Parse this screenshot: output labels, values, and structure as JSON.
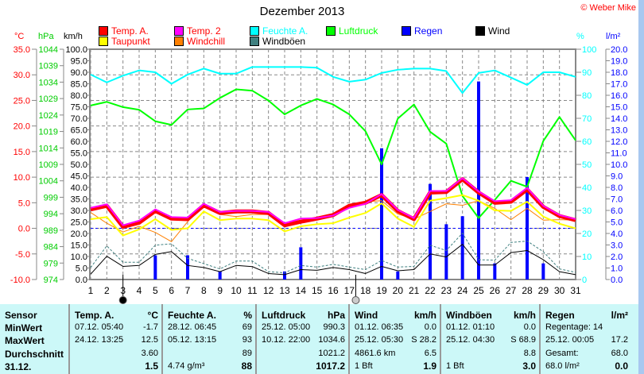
{
  "title": "Dezember 2013",
  "copyright": "© Weber Mike",
  "legend": [
    {
      "label": "Temp. A.",
      "color": "#ff0000",
      "text_color": "#ff0000"
    },
    {
      "label": "Temp. 2",
      "color": "#ff00ff",
      "text_color": "#ff0000"
    },
    {
      "label": "Feuchte A.",
      "color": "#00ffff",
      "text_color": "#00ffff"
    },
    {
      "label": "Luftdruck",
      "color": "#00ff00",
      "text_color": "#00ff00"
    },
    {
      "label": "Regen",
      "color": "#0000ff",
      "text_color": "#0000ff"
    },
    {
      "label": "Wind",
      "color": "#000000",
      "text_color": "#000000"
    },
    {
      "label": "Taupunkt",
      "color": "#ffff00",
      "text_color": "#ff0000"
    },
    {
      "label": "Windchill",
      "color": "#ff8000",
      "text_color": "#ff0000"
    },
    {
      "label": "Windböen",
      "color": "#408080",
      "text_color": "#000000"
    }
  ],
  "chart_data": {
    "type": "line",
    "title": "Dezember 2013",
    "x": [
      1,
      2,
      3,
      4,
      5,
      6,
      7,
      8,
      9,
      10,
      11,
      12,
      13,
      14,
      15,
      16,
      17,
      18,
      19,
      20,
      21,
      22,
      23,
      24,
      25,
      26,
      27,
      28,
      29,
      30,
      31
    ],
    "axes": {
      "temp": {
        "unit": "°C",
        "min": -10,
        "max": 35,
        "step": 5,
        "decimals": 1,
        "color": "#ff0000"
      },
      "pressure": {
        "unit": "hPa",
        "min": 974,
        "max": 1044,
        "step": 5,
        "decimals": 0,
        "color": "#00cc00"
      },
      "wind": {
        "unit": "km/h",
        "min": 0,
        "max": 100,
        "step": 5,
        "decimals": 1,
        "color": "#000000"
      },
      "humidity": {
        "unit": "%",
        "min": 0,
        "max": 100,
        "step": 10,
        "decimals": 0,
        "color": "#00ffff"
      },
      "rain": {
        "unit": "l/m²",
        "min": 0,
        "max": 20,
        "step": 1,
        "decimals": 1,
        "color": "#0000ff"
      }
    },
    "grid": true,
    "series": [
      {
        "name": "Feuchte A.",
        "axis": "humidity",
        "color": "#00ffff",
        "width": 2,
        "values": [
          89,
          85.6,
          88.5,
          90.8,
          90,
          85,
          89,
          91.6,
          89.4,
          89.4,
          92.3,
          92.3,
          92.3,
          92.3,
          92,
          88,
          85.9,
          86.8,
          89.7,
          91.1,
          91.6,
          91.6,
          90.5,
          81,
          89.7,
          90.8,
          87.7,
          84.5,
          90,
          90,
          88
        ]
      },
      {
        "name": "Luftdruck",
        "axis": "pressure",
        "color": "#00ff00",
        "width": 2,
        "values": [
          1026.9,
          1028,
          1026.4,
          1025.6,
          1022.1,
          1021,
          1025.7,
          1026,
          1029.2,
          1031.8,
          1031.4,
          1028.4,
          1024.2,
          1026.9,
          1028.9,
          1027.2,
          1024.2,
          1019.1,
          1009,
          1022.9,
          1027.2,
          1018.9,
          1015.3,
          999.4,
          992.7,
          998.2,
          1004,
          1002.2,
          1016.1,
          1023.4,
          1016.3
        ]
      },
      {
        "name": "Windchill",
        "axis": "temp",
        "color": "#ff8000",
        "width": 1,
        "values": [
          3.1,
          1.0,
          -0.7,
          0.4,
          -0.8,
          -2.6,
          1.3,
          4.4,
          2.7,
          2.3,
          2.7,
          2.7,
          0.3,
          1.3,
          1.8,
          2.6,
          4.4,
          5.2,
          5.4,
          2.8,
          1.8,
          3.3,
          4.8,
          4.5,
          5.4,
          3.9,
          1.7,
          3.9,
          1.6,
          1.7,
          1.6
        ]
      },
      {
        "name": "Taupunkt",
        "axis": "temp",
        "color": "#ffff00",
        "width": 2,
        "values": [
          1.8,
          2.2,
          -1.4,
          -0.2,
          1.8,
          -0.3,
          0,
          3.3,
          1.6,
          1.9,
          1.9,
          1.6,
          -0.6,
          0.4,
          0.8,
          1.0,
          2.1,
          3.0,
          4.9,
          1.9,
          0.3,
          5.4,
          5.9,
          6.5,
          5.4,
          3.5,
          3.4,
          5.2,
          2.3,
          0.9,
          0
        ]
      },
      {
        "name": "Temp. A.",
        "axis": "temp",
        "color": "#ff0000",
        "width": 5,
        "values": [
          3.7,
          4.4,
          0.3,
          1.1,
          3.4,
          1.9,
          1.8,
          4.5,
          3.0,
          3.3,
          3.3,
          3.0,
          0.6,
          1.3,
          1.9,
          2.6,
          4.4,
          5.0,
          6.5,
          3.4,
          1.8,
          7.0,
          7.1,
          9.6,
          7.0,
          5.0,
          5.2,
          7.6,
          4.2,
          2.4,
          1.6
        ]
      },
      {
        "name": "Temp. 2",
        "axis": "temp",
        "color": "#ff00ff",
        "width": 2,
        "values": [
          4.0,
          4.7,
          0.6,
          1.5,
          3.7,
          2.2,
          2.1,
          4.8,
          3.2,
          3.4,
          3.4,
          3.2,
          1.0,
          1.9,
          2.0,
          2.5,
          4.0,
          4.8,
          6.7,
          3.6,
          2.0,
          7.3,
          7.3,
          9.8,
          7.2,
          5.3,
          5.5,
          7.9,
          4.4,
          2.6,
          1.8
        ]
      },
      {
        "name": "Windböen",
        "axis": "wind",
        "color": "#408080",
        "width": 1,
        "dashed": true,
        "values": [
          5.2,
          14.6,
          7.5,
          7.5,
          14.9,
          15.5,
          9.2,
          6.9,
          4.6,
          8,
          8,
          3.4,
          2.9,
          6.1,
          5.4,
          6.6,
          5.4,
          4.3,
          8.3,
          5.4,
          5.7,
          14.9,
          12.6,
          20.1,
          8.6,
          8.4,
          16.1,
          16.7,
          12.1,
          4.6,
          3.1
        ]
      },
      {
        "name": "Wind",
        "axis": "wind",
        "color": "#000000",
        "width": 1,
        "values": [
          2.3,
          10.1,
          5.7,
          6.1,
          10.9,
          12.1,
          6.1,
          5.2,
          3.4,
          6.1,
          5.6,
          2.6,
          2.1,
          4.3,
          4.0,
          5.2,
          4.3,
          2.6,
          5.7,
          3.8,
          4.3,
          11.1,
          9.8,
          15.3,
          6.3,
          6.3,
          11.7,
          12.6,
          8.6,
          3.4,
          2.1
        ]
      }
    ],
    "rain": {
      "name": "Regen",
      "axis": "rain",
      "color": "#0000ff",
      "values": [
        0,
        0,
        0,
        0,
        2.1,
        0,
        2.1,
        0,
        0.7,
        0,
        0,
        0,
        0.7,
        2.8,
        0,
        0,
        0,
        0,
        11.4,
        0.7,
        0,
        8.3,
        4.8,
        5.5,
        17.2,
        1.4,
        0,
        8.9,
        1.4,
        0,
        0
      ]
    },
    "moon_phases": [
      {
        "day": 3,
        "phase": "new-moon"
      },
      {
        "day": 17.4,
        "phase": "full-moon"
      }
    ]
  },
  "table": {
    "headers": [
      {
        "name": "Sensor",
        "unit": ""
      },
      {
        "name": "Temp. A.",
        "unit": "°C"
      },
      {
        "name": "Feuchte A.",
        "unit": "%"
      },
      {
        "name": "Luftdruck",
        "unit": "hPa"
      },
      {
        "name": "Wind",
        "unit": "km/h"
      },
      {
        "name": "Windböen",
        "unit": "km/h"
      },
      {
        "name": "Regen",
        "unit": "l/m²"
      }
    ],
    "row_labels": [
      "MinWert",
      "MaxWert",
      "Durchschnitt",
      "31.12."
    ],
    "rows": [
      [
        [
          "07.12.  05:40",
          "-1.7"
        ],
        [
          "28.12.  06:45",
          "69"
        ],
        [
          "25.12.  05:00",
          "990.3"
        ],
        [
          "01.12.  06:35",
          "0.0"
        ],
        [
          "01.12.  01:10",
          "0.0"
        ],
        [
          "Regentage: 14",
          ""
        ]
      ],
      [
        [
          "24.12.  13:25",
          "12.5"
        ],
        [
          "05.12.  13:15",
          "93"
        ],
        [
          "10.12.  22:00",
          "1034.6"
        ],
        [
          "25.12.  05:30",
          "S 28.2"
        ],
        [
          "25.12.  04:30",
          "S 68.9"
        ],
        [
          "25.12.  00:05",
          "17.2"
        ]
      ],
      [
        [
          "",
          "3.60"
        ],
        [
          "",
          "89"
        ],
        [
          "",
          "1021.2"
        ],
        [
          "4861.6 km",
          "6.5"
        ],
        [
          "",
          "8.8"
        ],
        [
          "Gesamt:",
          "68.0"
        ]
      ],
      [
        [
          "",
          "1.5"
        ],
        [
          "4.74 g/m³",
          "88"
        ],
        [
          "",
          "1017.2"
        ],
        [
          "1 Bft",
          "1.9"
        ],
        [
          "1 Bft",
          "3.0"
        ],
        [
          "68.0 l/m²",
          "0.0"
        ]
      ]
    ]
  }
}
